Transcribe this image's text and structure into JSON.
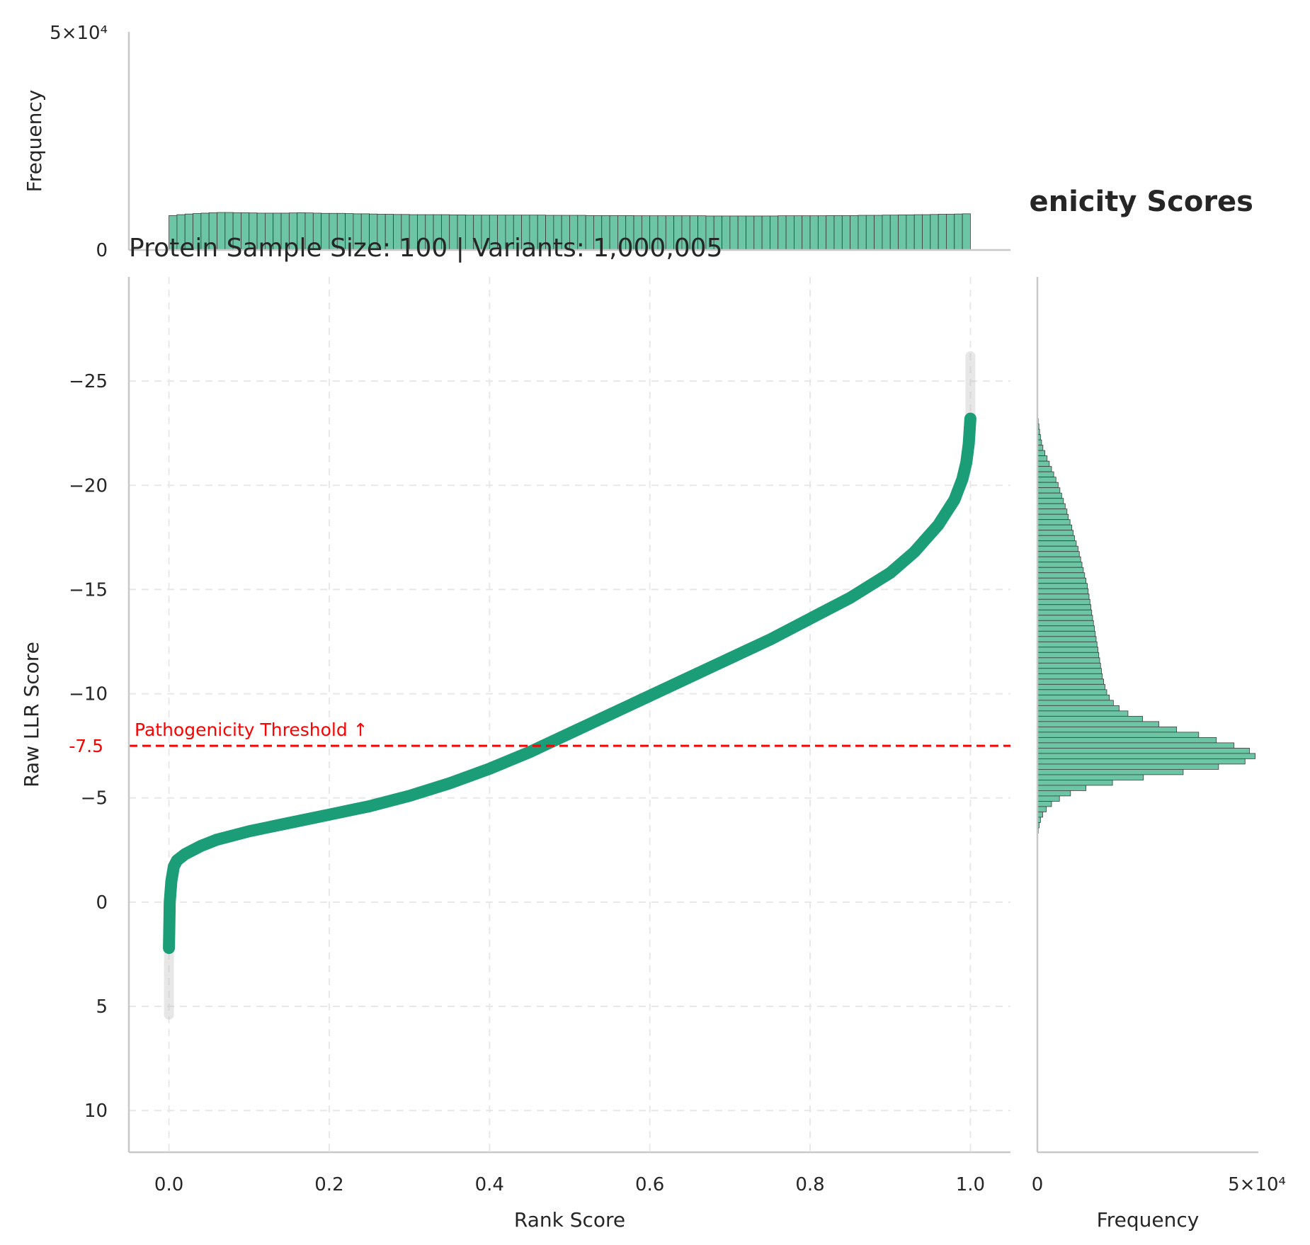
{
  "colors": {
    "accent": "#1b9e77",
    "hist_fill": "#6cc5a4",
    "threshold": "#ff0000",
    "text": "#262626"
  },
  "chart_data": {
    "type": "scatter",
    "title": "enicity Scores",
    "subtitle": "Protein Sample Size: 100 | Variants: 1,000,005",
    "xlabel": "Rank Score",
    "ylabel": "Raw LLR Score",
    "xlim": [
      -0.05,
      1.05
    ],
    "ylim": [
      12,
      -30
    ],
    "y_inverted": true,
    "grid": true,
    "x_ticks": [
      "0.0",
      "0.2",
      "0.4",
      "0.6",
      "0.8",
      "1.0"
    ],
    "y_ticks": [
      "−25",
      "−20",
      "−15",
      "−10",
      "−5",
      "0",
      "5",
      "10"
    ],
    "threshold": {
      "y": -7.5,
      "label": "Pathogenicity Threshold ↑",
      "value_label": "-7.5"
    },
    "curve": {
      "x": [
        0.0,
        0.001,
        0.003,
        0.006,
        0.01,
        0.02,
        0.04,
        0.06,
        0.1,
        0.15,
        0.2,
        0.25,
        0.3,
        0.35,
        0.4,
        0.45,
        0.5,
        0.55,
        0.6,
        0.65,
        0.7,
        0.75,
        0.8,
        0.85,
        0.9,
        0.93,
        0.96,
        0.98,
        0.99,
        0.995,
        0.998,
        1.0
      ],
      "y": [
        2.2,
        0.0,
        -1.0,
        -1.7,
        -2.0,
        -2.3,
        -2.7,
        -3.0,
        -3.4,
        -3.8,
        -4.2,
        -4.6,
        -5.1,
        -5.7,
        -6.4,
        -7.2,
        -8.1,
        -9.0,
        -9.9,
        -10.8,
        -11.7,
        -12.6,
        -13.6,
        -14.6,
        -15.8,
        -16.8,
        -18.1,
        -19.3,
        -20.3,
        -21.1,
        -22.0,
        -23.2
      ]
    },
    "top_histogram": {
      "ylabel": "Frequency",
      "y_ticks": [
        "0",
        "5×10⁴"
      ],
      "ylim": [
        0,
        50000
      ],
      "bins": 100,
      "counts": [
        7900,
        8100,
        8250,
        8350,
        8450,
        8550,
        8600,
        8600,
        8550,
        8550,
        8500,
        8450,
        8450,
        8450,
        8450,
        8500,
        8550,
        8500,
        8450,
        8400,
        8400,
        8400,
        8350,
        8300,
        8300,
        8250,
        8200,
        8200,
        8150,
        8150,
        8100,
        8100,
        8100,
        8100,
        8100,
        8050,
        8050,
        8000,
        8000,
        8000,
        8000,
        8000,
        8000,
        8000,
        8000,
        8000,
        8000,
        7950,
        7950,
        7950,
        7950,
        7950,
        7900,
        7900,
        7900,
        7900,
        7900,
        7900,
        7850,
        7850,
        7850,
        7850,
        7850,
        7850,
        7850,
        7850,
        7850,
        7800,
        7800,
        7800,
        7800,
        7800,
        7800,
        7800,
        7800,
        7800,
        7850,
        7850,
        7850,
        7850,
        7850,
        7850,
        7900,
        7900,
        7900,
        7900,
        7950,
        7950,
        7950,
        8000,
        8000,
        8050,
        8050,
        8100,
        8100,
        8150,
        8200,
        8200,
        8250,
        8300
      ]
    },
    "right_histogram": {
      "xlabel": "Frequency",
      "x_ticks": [
        "0",
        "5×10⁴"
      ],
      "xlim": [
        0,
        50000
      ],
      "bin_edges_start": -23.2,
      "bin_width": 0.255,
      "counts": [
        200,
        350,
        500,
        700,
        950,
        1250,
        1700,
        2200,
        2700,
        3200,
        3700,
        4200,
        4700,
        5100,
        5500,
        5900,
        6300,
        6700,
        7000,
        7400,
        7800,
        8100,
        8400,
        8800,
        9200,
        9500,
        9800,
        10100,
        10400,
        10700,
        11000,
        11300,
        11500,
        11700,
        11900,
        12100,
        12300,
        12500,
        12700,
        12900,
        13100,
        13300,
        13500,
        13700,
        13900,
        14100,
        14300,
        14500,
        14700,
        15000,
        15300,
        15700,
        16300,
        17200,
        18500,
        20500,
        23800,
        27500,
        31500,
        36500,
        40500,
        44500,
        48000,
        49300,
        47000,
        41000,
        33000,
        24000,
        17000,
        11000,
        7500,
        5000,
        3200,
        2000,
        1200,
        700,
        400,
        200
      ]
    }
  }
}
